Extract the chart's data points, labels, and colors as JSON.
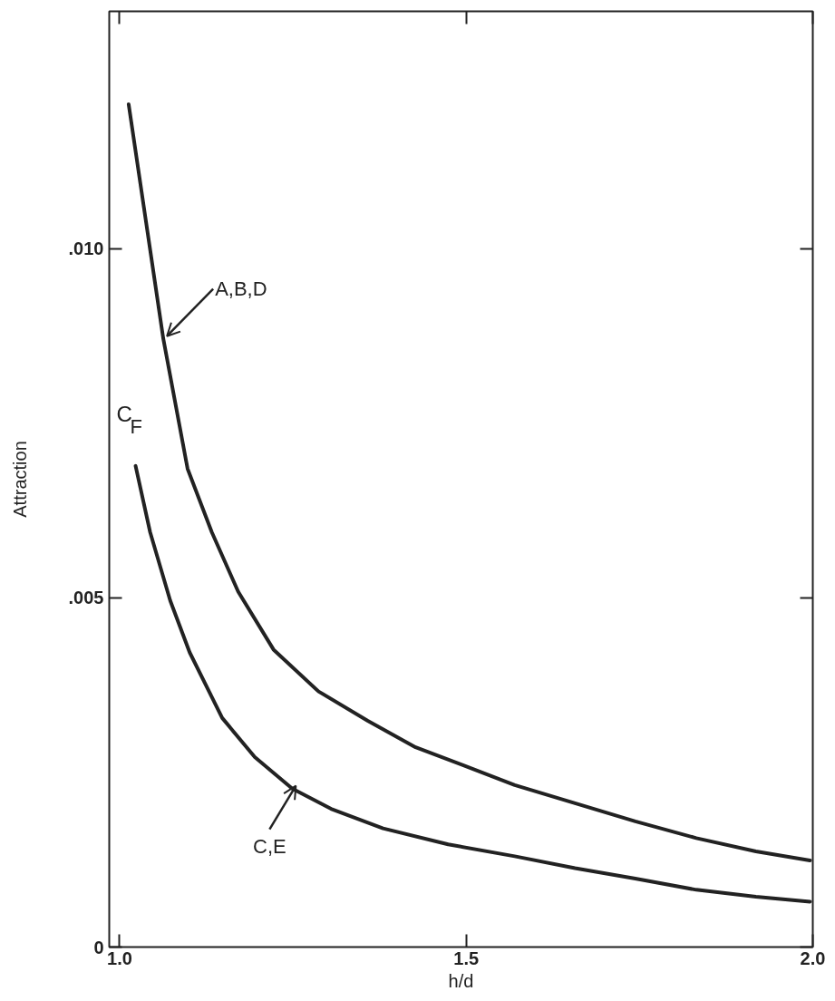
{
  "chart_data": {
    "type": "line",
    "xlabel": "h/d",
    "ylabel": "Attraction",
    "xlim": [
      0.985,
      2.0
    ],
    "ylim": [
      0,
      0.0134
    ],
    "xticks": [
      {
        "value": 1.0,
        "label": "1.0"
      },
      {
        "value": 1.5,
        "label": "1.5"
      },
      {
        "value": 2.0,
        "label": "2.0"
      }
    ],
    "yticks": [
      0,
      {
        "value": 0.005,
        "label": ".005"
      },
      {
        "value": 0.01,
        "label": ".010"
      }
    ],
    "grid": false,
    "marker": "none",
    "line_style": "solid",
    "series": [
      {
        "color": "#222222",
        "x": [
          1.013,
          1.063,
          1.098,
          1.133,
          1.171,
          1.222,
          1.287,
          1.358,
          1.427,
          1.497,
          1.57,
          1.657,
          1.744,
          1.832,
          1.918,
          1.996
        ],
        "values": [
          0.01207,
          0.00871,
          0.00685,
          0.00594,
          0.00509,
          0.00426,
          0.00366,
          0.00324,
          0.00286,
          0.0026,
          0.00232,
          0.00206,
          0.0018,
          0.00156,
          0.00137,
          0.00124
        ]
      },
      {
        "color": "#222222",
        "x": [
          1.023,
          1.044,
          1.073,
          1.101,
          1.148,
          1.195,
          1.249,
          1.305,
          1.38,
          1.474,
          1.57,
          1.657,
          1.744,
          1.832,
          1.918,
          1.996
        ],
        "values": [
          0.00689,
          0.00594,
          0.00496,
          0.00422,
          0.00328,
          0.00272,
          0.00227,
          0.00198,
          0.0017,
          0.00147,
          0.0013,
          0.00113,
          0.00098,
          0.00082,
          0.00072,
          0.00065
        ]
      }
    ],
    "annotations": [
      {
        "text": "A,B,D",
        "x": 1.063,
        "y": 0.00871
      },
      {
        "text": "C,E",
        "x": 1.249,
        "y": 0.00227
      },
      "C$_{F}$"
    ]
  }
}
